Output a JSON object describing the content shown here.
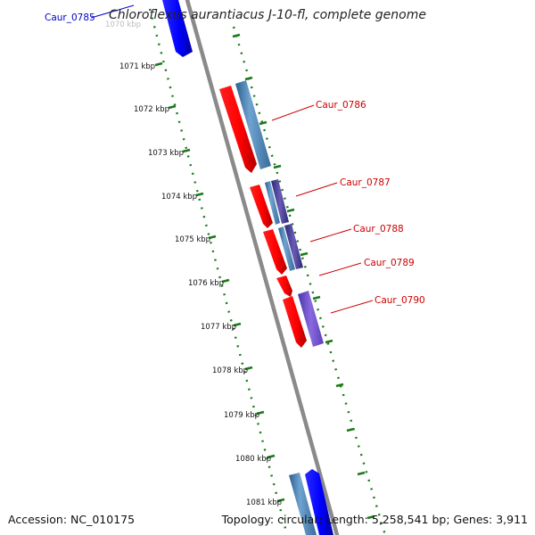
{
  "title": "Chloroflexus aurantiacus J-10-fl, complete genome",
  "footer": {
    "accession": "Accession: NC_010175",
    "summary": "Topology: circular; Length: 5,258,541 bp; Genes: 3,911"
  },
  "ruler": {
    "faded_tick_label": "1070 kbp",
    "tick_labels": [
      "1071 kbp",
      "1072 kbp",
      "1073 kbp",
      "1074 kbp",
      "1075 kbp",
      "1076 kbp",
      "1077 kbp",
      "1078 kbp",
      "1079 kbp",
      "1080 kbp",
      "1081 kbp"
    ]
  },
  "genes": [
    {
      "name": "Caur_0785",
      "color": "#0000cc"
    },
    {
      "name": "Caur_0786",
      "color": "#cc0000"
    },
    {
      "name": "Caur_0787",
      "color": "#cc0000"
    },
    {
      "name": "Caur_0788",
      "color": "#cc0000"
    },
    {
      "name": "Caur_0789",
      "color": "#cc0000"
    },
    {
      "name": "Caur_0790",
      "color": "#cc0000"
    }
  ],
  "colors": {
    "backbone": "#888888",
    "tick": "#1a7a1a",
    "forward_cds": "#ff0000",
    "reverse_cds": "#0000ff",
    "steelblue": "#4a7fb0",
    "purple": "#7050c8",
    "label_red": "#cc0000",
    "label_blue": "#0000cc"
  }
}
